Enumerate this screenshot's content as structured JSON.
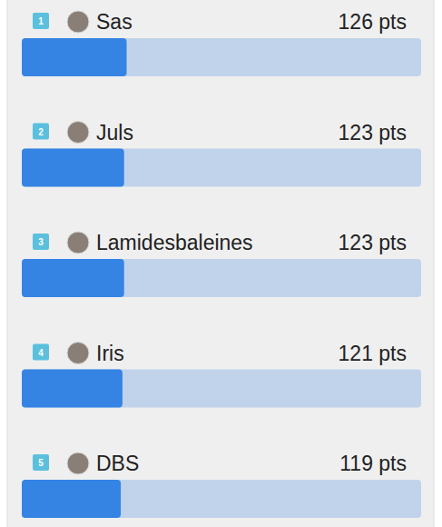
{
  "chart_data": {
    "type": "bar",
    "orientation": "horizontal",
    "categories": [
      "Sas",
      "Juls",
      "Lamidesbaleines",
      "Iris",
      "DBS"
    ],
    "values": [
      126,
      123,
      123,
      121,
      119
    ],
    "value_labels": [
      "126 pts",
      "123 pts",
      "123 pts",
      "121 pts",
      "119 pts"
    ],
    "ranks": [
      1,
      2,
      3,
      4,
      5
    ],
    "color": "#3584e4",
    "xlim": [
      0,
      480
    ]
  }
}
